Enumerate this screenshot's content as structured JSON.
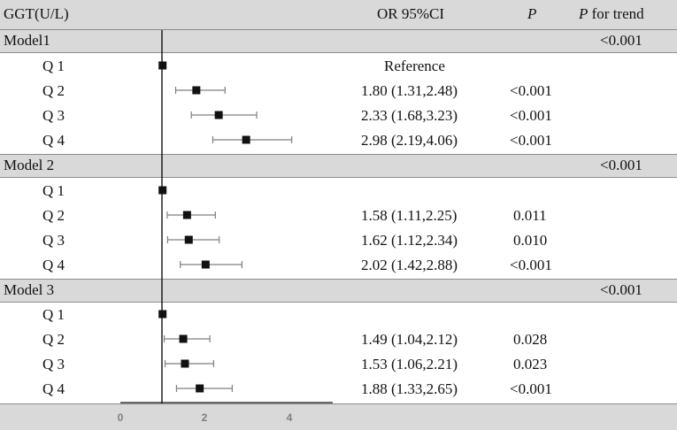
{
  "header": {
    "col_exposure": "GGT(U/L)",
    "col_or": "OR 95%CI",
    "col_p": "P",
    "col_p_trend_italic": "P",
    "col_p_trend_rest": " for trend"
  },
  "chart_data": {
    "type": "forest",
    "x_ticks": [
      "0",
      "2",
      "4"
    ],
    "reference_line": 1,
    "models": [
      {
        "name": "Model1",
        "p_trend": "<0.001",
        "rows": [
          {
            "label": "Q 1",
            "or": 1.0,
            "lower": 1.0,
            "upper": 1.0,
            "or_text": "Reference",
            "p": ""
          },
          {
            "label": "Q 2",
            "or": 1.8,
            "lower": 1.31,
            "upper": 2.48,
            "or_text": "1.80 (1.31,2.48)",
            "p": "<0.001"
          },
          {
            "label": "Q 3",
            "or": 2.33,
            "lower": 1.68,
            "upper": 3.23,
            "or_text": "2.33 (1.68,3.23)",
            "p": "<0.001"
          },
          {
            "label": "Q 4",
            "or": 2.98,
            "lower": 2.19,
            "upper": 4.06,
            "or_text": "2.98 (2.19,4.06)",
            "p": "<0.001"
          }
        ]
      },
      {
        "name": "Model 2",
        "p_trend": "<0.001",
        "rows": [
          {
            "label": "Q 1",
            "or": 1.0,
            "lower": 1.0,
            "upper": 1.0,
            "or_text": "",
            "p": ""
          },
          {
            "label": "Q 2",
            "or": 1.58,
            "lower": 1.11,
            "upper": 2.25,
            "or_text": "1.58 (1.11,2.25)",
            "p": "0.011"
          },
          {
            "label": "Q 3",
            "or": 1.62,
            "lower": 1.12,
            "upper": 2.34,
            "or_text": "1.62 (1.12,2.34)",
            "p": "0.010"
          },
          {
            "label": "Q 4",
            "or": 2.02,
            "lower": 1.42,
            "upper": 2.88,
            "or_text": "2.02 (1.42,2.88)",
            "p": "<0.001"
          }
        ]
      },
      {
        "name": "Model 3",
        "p_trend": "<0.001",
        "rows": [
          {
            "label": "Q 1",
            "or": 1.0,
            "lower": 1.0,
            "upper": 1.0,
            "or_text": "",
            "p": ""
          },
          {
            "label": "Q 2",
            "or": 1.49,
            "lower": 1.04,
            "upper": 2.12,
            "or_text": "1.49 (1.04,2.12)",
            "p": "0.028"
          },
          {
            "label": "Q 3",
            "or": 1.53,
            "lower": 1.06,
            "upper": 2.21,
            "or_text": "1.53 (1.06,2.21)",
            "p": "0.023"
          },
          {
            "label": "Q 4",
            "or": 1.88,
            "lower": 1.33,
            "upper": 2.65,
            "or_text": "1.88 (1.33,2.65)",
            "p": "<0.001"
          }
        ]
      }
    ]
  }
}
